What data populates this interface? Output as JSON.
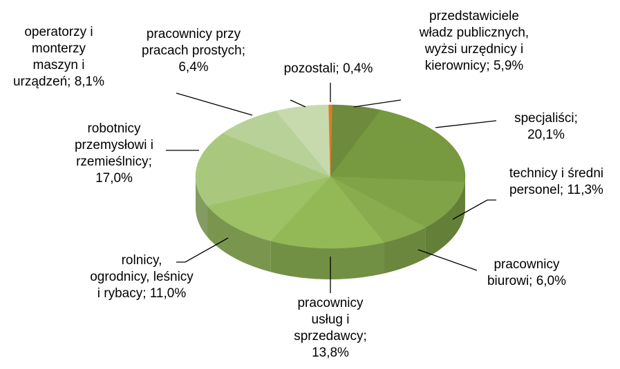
{
  "chart_data": {
    "type": "pie3d",
    "values": [
      5.9,
      20.1,
      11.3,
      6.0,
      13.8,
      11.0,
      17.0,
      8.1,
      6.4,
      0.4
    ],
    "value_labels": [
      "przedstawiciele władz publicznych, wyżsi urzędnicy i kierownicy; 5,9%",
      "specjaliści; 20,1%",
      "technicy i średni personel; 11,3%",
      "pracownicy biurowi; 6,0%",
      "pracownicy usług i sprzedawcy; 13,8%",
      "rolnicy, ogrodnicy, leśnicy i rybacy; 11,0%",
      "robotnicy przemysłowi i rzemieślnicy; 17,0%",
      "operatorzy i monterzy maszyn i urządzeń; 8,1%",
      "pracownicy przy pracach prostych; 6,4%",
      "pozostali; 0,4%"
    ],
    "colors": [
      "#6e8b3d",
      "#77993f",
      "#80a347",
      "#89ac4f",
      "#93b957",
      "#9dc165",
      "#a9c87e",
      "#b8d198",
      "#c7daae",
      "#e07b22"
    ]
  }
}
